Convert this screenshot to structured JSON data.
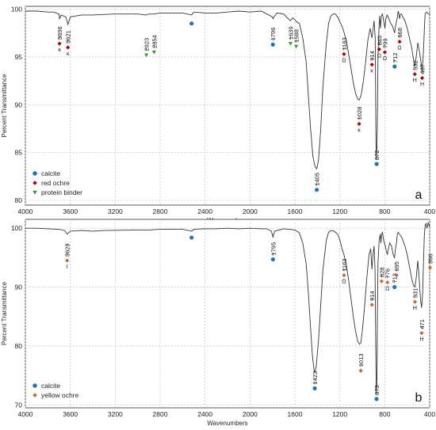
{
  "chart_data": [
    {
      "type": "line",
      "panel_label": "a",
      "xlabel": "Wavenumbers",
      "ylabel": "Percent Transmittance",
      "xlim": [
        4000,
        400
      ],
      "ylim": [
        79.5,
        100.3
      ],
      "xticks": [
        4000,
        3600,
        3200,
        2800,
        2400,
        2000,
        1600,
        1200,
        800,
        400
      ],
      "yticks": [
        80,
        85,
        90,
        95,
        100
      ],
      "grid": true,
      "legend_position": "bottom-left",
      "legend": [
        {
          "label": "calcite",
          "shape": "circle",
          "color": "#1f77b4"
        },
        {
          "label": "red ochre",
          "shape": "diamond",
          "color": "#b30000"
        },
        {
          "label": "protein binder",
          "shape": "triangle-down",
          "color": "#2ca02c"
        }
      ],
      "spectrum": [
        [
          4000,
          99.8
        ],
        [
          3900,
          99.8
        ],
        [
          3800,
          99.7
        ],
        [
          3750,
          99.7
        ],
        [
          3700,
          99.5
        ],
        [
          3696,
          99.0
        ],
        [
          3680,
          99.4
        ],
        [
          3640,
          99.2
        ],
        [
          3621,
          98.4
        ],
        [
          3600,
          99.2
        ],
        [
          3500,
          99.4
        ],
        [
          3400,
          99.4
        ],
        [
          3200,
          99.5
        ],
        [
          3000,
          99.5
        ],
        [
          2923,
          99.4
        ],
        [
          2900,
          99.5
        ],
        [
          2854,
          99.5
        ],
        [
          2800,
          99.6
        ],
        [
          2700,
          99.6
        ],
        [
          2600,
          99.6
        ],
        [
          2520,
          99.4
        ],
        [
          2500,
          99.7
        ],
        [
          2400,
          99.6
        ],
        [
          2300,
          99.6
        ],
        [
          2200,
          99.7
        ],
        [
          2100,
          99.8
        ],
        [
          2000,
          99.7
        ],
        [
          1900,
          99.8
        ],
        [
          1850,
          99.5
        ],
        [
          1800,
          99.2
        ],
        [
          1796,
          99.0
        ],
        [
          1780,
          99.3
        ],
        [
          1760,
          99.6
        ],
        [
          1700,
          99.5
        ],
        [
          1660,
          99.0
        ],
        [
          1639,
          98.8
        ],
        [
          1620,
          99.1
        ],
        [
          1600,
          98.9
        ],
        [
          1588,
          98.7
        ],
        [
          1560,
          98.5
        ],
        [
          1530,
          97.0
        ],
        [
          1500,
          94.5
        ],
        [
          1480,
          91.0
        ],
        [
          1460,
          87.5
        ],
        [
          1440,
          84.6
        ],
        [
          1420,
          83.5
        ],
        [
          1405,
          83.3
        ],
        [
          1390,
          84.2
        ],
        [
          1370,
          87.5
        ],
        [
          1350,
          92.0
        ],
        [
          1320,
          96.5
        ],
        [
          1300,
          98.5
        ],
        [
          1280,
          99.3
        ],
        [
          1260,
          99.5
        ],
        [
          1240,
          99.5
        ],
        [
          1220,
          99.2
        ],
        [
          1200,
          98.7
        ],
        [
          1180,
          98.2
        ],
        [
          1163,
          97.6
        ],
        [
          1140,
          96.6
        ],
        [
          1120,
          95.2
        ],
        [
          1100,
          93.8
        ],
        [
          1080,
          92.3
        ],
        [
          1060,
          91.2
        ],
        [
          1040,
          90.6
        ],
        [
          1028,
          90.5
        ],
        [
          1010,
          91.0
        ],
        [
          990,
          92.5
        ],
        [
          970,
          94.5
        ],
        [
          950,
          96.8
        ],
        [
          930,
          98.0
        ],
        [
          914,
          97.0
        ],
        [
          905,
          97.8
        ],
        [
          895,
          98.8
        ],
        [
          885,
          97.0
        ],
        [
          878,
          86.0
        ],
        [
          872,
          84.3
        ],
        [
          866,
          88.0
        ],
        [
          860,
          95.0
        ],
        [
          850,
          98.5
        ],
        [
          845,
          99.3
        ],
        [
          838,
          98.0
        ],
        [
          830,
          99.3
        ],
        [
          820,
          99.5
        ],
        [
          810,
          98.8
        ],
        [
          798,
          98.0
        ],
        [
          790,
          99.0
        ],
        [
          780,
          99.4
        ],
        [
          770,
          99.2
        ],
        [
          750,
          98.6
        ],
        [
          730,
          98.2
        ],
        [
          712,
          97.5
        ],
        [
          705,
          98.2
        ],
        [
          690,
          99.0
        ],
        [
          680,
          99.8
        ],
        [
          675,
          99.6
        ],
        [
          668,
          99.0
        ],
        [
          660,
          99.5
        ],
        [
          650,
          99.5
        ],
        [
          640,
          99.2
        ],
        [
          620,
          98.8
        ],
        [
          600,
          98.0
        ],
        [
          580,
          97.0
        ],
        [
          560,
          96.0
        ],
        [
          545,
          94.8
        ],
        [
          532,
          94.0
        ],
        [
          520,
          95.0
        ],
        [
          505,
          96.5
        ],
        [
          490,
          95.5
        ],
        [
          478,
          94.5
        ],
        [
          467,
          93.5
        ],
        [
          458,
          95.0
        ],
        [
          450,
          97.0
        ],
        [
          445,
          98.5
        ],
        [
          440,
          99.5
        ],
        [
          430,
          99.7
        ],
        [
          420,
          99.6
        ],
        [
          410,
          99.5
        ],
        [
          400,
          99.5
        ]
      ],
      "markers": [
        {
          "x": 3696,
          "y": 96.4,
          "label": "3696",
          "note": "κ",
          "type": "red ochre"
        },
        {
          "x": 3621,
          "y": 96.0,
          "label": "3621",
          "note": "κ",
          "type": "red ochre"
        },
        {
          "x": 2923,
          "y": 95.2,
          "label": "2923",
          "note": "",
          "type": "protein binder"
        },
        {
          "x": 2854,
          "y": 95.5,
          "label": "2854",
          "note": "",
          "type": "protein binder"
        },
        {
          "x": 2520,
          "y": 98.5,
          "label": "",
          "note": "",
          "type": "calcite"
        },
        {
          "x": 1796,
          "y": 96.3,
          "label": "1796",
          "note": "",
          "type": "calcite"
        },
        {
          "x": 1639,
          "y": 96.4,
          "label": "1639",
          "note": "",
          "type": "protein binder"
        },
        {
          "x": 1588,
          "y": 96.1,
          "label": "1588",
          "note": "",
          "type": "protein binder"
        },
        {
          "x": 1405,
          "y": 81.1,
          "label": "1405",
          "note": "",
          "type": "calcite"
        },
        {
          "x": 1163,
          "y": 95.3,
          "label": "1163",
          "note": "Ω",
          "type": "red ochre"
        },
        {
          "x": 1028,
          "y": 88.0,
          "label": "1028",
          "note": "κ",
          "type": "red ochre"
        },
        {
          "x": 914,
          "y": 94.2,
          "label": "914",
          "note": "κ",
          "type": "red ochre"
        },
        {
          "x": 872,
          "y": 83.8,
          "label": "872",
          "note": "",
          "type": "calcite"
        },
        {
          "x": 849,
          "y": 95.8,
          "label": "849",
          "note": "Ω",
          "type": "red ochre"
        },
        {
          "x": 799,
          "y": 95.5,
          "label": "799",
          "note": "Ω",
          "type": "red ochre"
        },
        {
          "x": 712,
          "y": 94.0,
          "label": "712",
          "note": "",
          "type": "calcite"
        },
        {
          "x": 668,
          "y": 96.6,
          "label": "668",
          "note": "Ω",
          "type": "red ochre"
        },
        {
          "x": 532,
          "y": 93.2,
          "label": "532",
          "note": "H",
          "type": "red ochre"
        },
        {
          "x": 467,
          "y": 92.8,
          "label": "467",
          "note": "H",
          "type": "red ochre"
        }
      ]
    },
    {
      "type": "line",
      "panel_label": "b",
      "xlabel": "Wavenumbers",
      "ylabel": "Percent Transmittance",
      "xlim": [
        4000,
        400
      ],
      "ylim": [
        69.5,
        101.5
      ],
      "xticks": [
        4000,
        3600,
        3200,
        2800,
        2400,
        2000,
        1600,
        1200,
        800,
        400
      ],
      "yticks": [
        70,
        80,
        90,
        100
      ],
      "grid": true,
      "legend_position": "bottom-left",
      "legend": [
        {
          "label": "calcite",
          "shape": "circle",
          "color": "#1f77b4"
        },
        {
          "label": "yellow ochre",
          "shape": "diamond",
          "color": "#cc6622"
        }
      ],
      "spectrum": [
        [
          4000,
          100.0
        ],
        [
          3900,
          100.0
        ],
        [
          3800,
          99.9
        ],
        [
          3700,
          99.8
        ],
        [
          3650,
          99.6
        ],
        [
          3628,
          99.0
        ],
        [
          3600,
          99.5
        ],
        [
          3500,
          99.6
        ],
        [
          3400,
          99.5
        ],
        [
          3300,
          99.6
        ],
        [
          3000,
          99.7
        ],
        [
          2900,
          99.7
        ],
        [
          2800,
          99.8
        ],
        [
          2700,
          99.8
        ],
        [
          2600,
          99.8
        ],
        [
          2520,
          99.5
        ],
        [
          2500,
          99.8
        ],
        [
          2400,
          99.9
        ],
        [
          2300,
          99.9
        ],
        [
          2200,
          100.0
        ],
        [
          2100,
          99.9
        ],
        [
          2000,
          100.0
        ],
        [
          1900,
          99.9
        ],
        [
          1850,
          99.9
        ],
        [
          1810,
          99.5
        ],
        [
          1795,
          98.5
        ],
        [
          1780,
          99.5
        ],
        [
          1700,
          99.9
        ],
        [
          1650,
          99.8
        ],
        [
          1600,
          99.7
        ],
        [
          1560,
          99.2
        ],
        [
          1530,
          97.5
        ],
        [
          1500,
          94.0
        ],
        [
          1480,
          89.0
        ],
        [
          1460,
          83.0
        ],
        [
          1445,
          78.5
        ],
        [
          1430,
          76.0
        ],
        [
          1423,
          75.5
        ],
        [
          1410,
          76.5
        ],
        [
          1390,
          81.0
        ],
        [
          1370,
          87.0
        ],
        [
          1350,
          93.0
        ],
        [
          1320,
          98.0
        ],
        [
          1300,
          99.3
        ],
        [
          1280,
          99.6
        ],
        [
          1250,
          99.5
        ],
        [
          1220,
          99.0
        ],
        [
          1200,
          98.0
        ],
        [
          1180,
          96.5
        ],
        [
          1163,
          95.5
        ],
        [
          1140,
          93.5
        ],
        [
          1120,
          91.0
        ],
        [
          1100,
          88.0
        ],
        [
          1080,
          85.0
        ],
        [
          1060,
          82.5
        ],
        [
          1040,
          80.8
        ],
        [
          1025,
          80.3
        ],
        [
          1013,
          80.5
        ],
        [
          1000,
          82.5
        ],
        [
          980,
          86.5
        ],
        [
          960,
          91.5
        ],
        [
          940,
          95.5
        ],
        [
          925,
          96.5
        ],
        [
          914,
          93.0
        ],
        [
          905,
          95.5
        ],
        [
          895,
          97.0
        ],
        [
          886,
          93.0
        ],
        [
          880,
          80.0
        ],
        [
          876,
          73.0
        ],
        [
          873,
          72.0
        ],
        [
          869,
          76.0
        ],
        [
          865,
          85.0
        ],
        [
          860,
          94.0
        ],
        [
          850,
          98.0
        ],
        [
          840,
          99.0
        ],
        [
          834,
          97.5
        ],
        [
          828,
          99.0
        ],
        [
          820,
          99.3
        ],
        [
          810,
          98.0
        ],
        [
          795,
          97.0
        ],
        [
          785,
          96.0
        ],
        [
          776,
          95.5
        ],
        [
          768,
          96.5
        ],
        [
          755,
          97.5
        ],
        [
          740,
          97.0
        ],
        [
          725,
          95.5
        ],
        [
          713,
          95.0
        ],
        [
          705,
          96.5
        ],
        [
          695,
          97.5
        ],
        [
          688,
          99.0
        ],
        [
          680,
          99.3
        ],
        [
          670,
          99.0
        ],
        [
          650,
          98.5
        ],
        [
          620,
          97.0
        ],
        [
          600,
          95.5
        ],
        [
          580,
          93.5
        ],
        [
          560,
          91.5
        ],
        [
          545,
          90.3
        ],
        [
          531,
          90.0
        ],
        [
          520,
          91.5
        ],
        [
          505,
          94.5
        ],
        [
          492,
          91.0
        ],
        [
          480,
          87.5
        ],
        [
          471,
          86.5
        ],
        [
          462,
          89.0
        ],
        [
          455,
          94.0
        ],
        [
          448,
          98.5
        ],
        [
          440,
          100.5
        ],
        [
          432,
          100.8
        ],
        [
          425,
          100.0
        ],
        [
          418,
          100.5
        ],
        [
          412,
          101.0
        ],
        [
          406,
          100.5
        ],
        [
          400,
          100.2
        ]
      ],
      "markers": [
        {
          "x": 3628,
          "y": 94.5,
          "label": "3628",
          "note": "I",
          "type": "yellow ochre"
        },
        {
          "x": 2520,
          "y": 98.4,
          "label": "",
          "note": "",
          "type": "calcite"
        },
        {
          "x": 1795,
          "y": 94.7,
          "label": "1795",
          "note": "",
          "type": "calcite"
        },
        {
          "x": 1423,
          "y": 72.8,
          "label": "1423",
          "note": "",
          "type": "calcite"
        },
        {
          "x": 1163,
          "y": 92.0,
          "label": "1163",
          "note": "Ω",
          "type": "yellow ochre"
        },
        {
          "x": 1013,
          "y": 75.8,
          "label": "1013",
          "note": "",
          "type": "yellow ochre"
        },
        {
          "x": 914,
          "y": 87.0,
          "label": "914",
          "note": "",
          "type": "yellow ochre"
        },
        {
          "x": 873,
          "y": 71.0,
          "label": "873",
          "note": "",
          "type": "calcite"
        },
        {
          "x": 828,
          "y": 91.0,
          "label": "828",
          "note": "",
          "type": "yellow ochre"
        },
        {
          "x": 776,
          "y": 90.8,
          "label": "776",
          "note": "Ω",
          "type": "yellow ochre"
        },
        {
          "x": 713,
          "y": 90.0,
          "label": "713",
          "note": "",
          "type": "calcite"
        },
        {
          "x": 695,
          "y": 92.0,
          "label": "695",
          "note": "",
          "type": "yellow ochre"
        },
        {
          "x": 531,
          "y": 87.5,
          "label": "531",
          "note": "H",
          "type": "yellow ochre"
        },
        {
          "x": 471,
          "y": 82.2,
          "label": "471",
          "note": "H",
          "type": "yellow ochre"
        },
        {
          "x": 396,
          "y": 93.3,
          "label": "396",
          "note": "",
          "type": "yellow ochre"
        }
      ]
    }
  ],
  "colors": {
    "calcite": "#1f77b4",
    "red ochre": "#b30000",
    "protein binder": "#2ca02c",
    "yellow ochre": "#cc6622",
    "line": "#333333",
    "grid": "#c8c8c8"
  }
}
